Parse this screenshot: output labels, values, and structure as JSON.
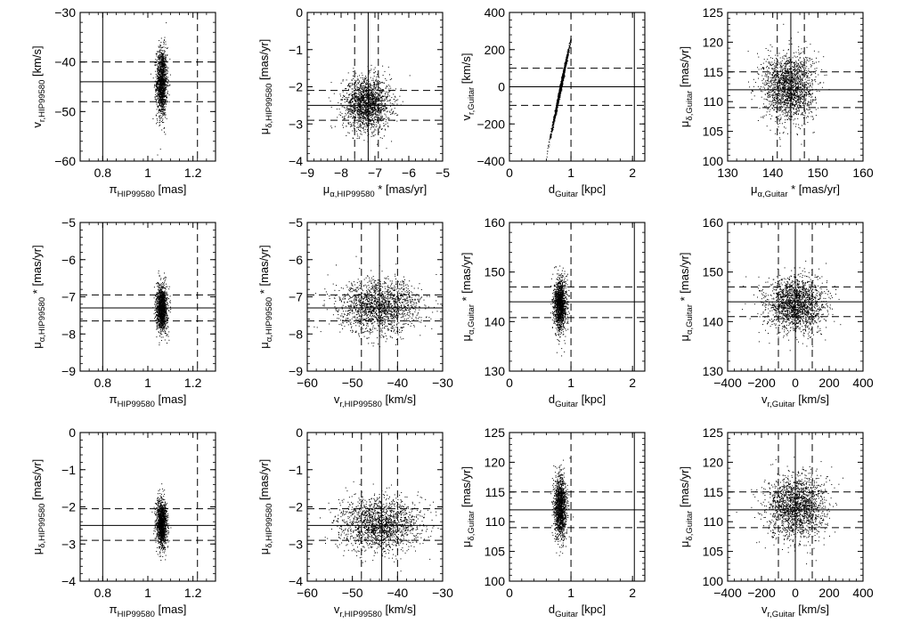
{
  "chart_data": [
    {
      "type": "scatter",
      "xlabel": {
        "main": "π",
        "sub": "HIP99580",
        "unit": "[mas]"
      },
      "ylabel": {
        "main": "v",
        "sub": "r,HIP99580",
        "unit": "[km/s]"
      },
      "xlim": [
        0.7,
        1.3
      ],
      "ylim": [
        -60,
        -30
      ],
      "xticks": [
        0.8,
        1,
        1.2
      ],
      "yticks": [
        -60,
        -50,
        -40,
        -30
      ],
      "xtick_labels": [
        "0.8",
        "1",
        "1.2"
      ],
      "ytick_labels": [
        "−60",
        "−50",
        "−40",
        "−30"
      ],
      "cloud": {
        "cx": 1.06,
        "sx": 0.012,
        "cy": -44,
        "sy": 3.5,
        "n": 1300
      },
      "solid_x": [
        0.8
      ],
      "dashed_x": [
        1.22
      ],
      "solid_y": [
        -44
      ],
      "dashed_y": [
        -40,
        -48
      ]
    },
    {
      "type": "scatter",
      "xlabel": {
        "main": "μ",
        "sub": "α,HIP99580",
        "unit": "* [mas/yr]"
      },
      "ylabel": {
        "main": "μ",
        "sub": "δ,HIP99580",
        "unit": "[mas/yr]"
      },
      "xlim": [
        -9,
        -5
      ],
      "ylim": [
        -4,
        0
      ],
      "xticks": [
        -9,
        -8,
        -7,
        -6,
        -5
      ],
      "yticks": [
        -4,
        -3,
        -2,
        -1,
        0
      ],
      "xtick_labels": [
        "−9",
        "−8",
        "−7",
        "−6",
        "−5"
      ],
      "ytick_labels": [
        "−4",
        "−3",
        "−2",
        "−1",
        "0"
      ],
      "cloud": {
        "cx": -7.25,
        "sx": 0.35,
        "cy": -2.45,
        "sy": 0.35,
        "n": 1700
      },
      "solid_x": [
        -7.2
      ],
      "dashed_x": [
        -7.6,
        -6.9
      ],
      "solid_y": [
        -2.5
      ],
      "dashed_y": [
        -2.1,
        -2.9
      ]
    },
    {
      "type": "scatter",
      "xlabel": {
        "main": "d",
        "sub": "Guitar",
        "unit": "[kpc]"
      },
      "ylabel": {
        "main": "v",
        "sub": "r,Guitar",
        "unit": "[km/s]"
      },
      "xlim": [
        0,
        2.2
      ],
      "ylim": [
        -400,
        400
      ],
      "xticks": [
        0,
        1,
        2
      ],
      "yticks": [
        -400,
        -200,
        0,
        200,
        400
      ],
      "xtick_labels": [
        "0",
        "1",
        "2"
      ],
      "ytick_labels": [
        "−400",
        "−200",
        "0",
        "200",
        "400"
      ],
      "cloud": {
        "mode": "curve",
        "cx": 0.83,
        "sx": 0.07,
        "slope": 1580,
        "n": 1400
      },
      "solid_x": [
        2.03
      ],
      "dashed_x": [
        1.0
      ],
      "solid_y": [
        0
      ],
      "dashed_y": [
        100,
        -100
      ]
    },
    {
      "type": "scatter",
      "xlabel": {
        "main": "μ",
        "sub": "α,Guitar",
        "unit": "* [mas/yr]"
      },
      "ylabel": {
        "main": "μ",
        "sub": "δ,Guitar",
        "unit": "[mas/yr]"
      },
      "xlim": [
        130,
        160
      ],
      "ylim": [
        100,
        125
      ],
      "xticks": [
        130,
        140,
        150,
        160
      ],
      "yticks": [
        100,
        105,
        110,
        115,
        120,
        125
      ],
      "xtick_labels": [
        "130",
        "140",
        "150",
        "160"
      ],
      "ytick_labels": [
        "100",
        "105",
        "110",
        "115",
        "120",
        "125"
      ],
      "cloud": {
        "cx": 143.5,
        "sx": 2.8,
        "cy": 112.5,
        "sy": 2.8,
        "n": 1800
      },
      "solid_x": [
        144
      ],
      "dashed_x": [
        141,
        147
      ],
      "solid_y": [
        112
      ],
      "dashed_y": [
        115,
        109
      ]
    },
    {
      "type": "scatter",
      "xlabel": {
        "main": "π",
        "sub": "HIP99580",
        "unit": "[mas]"
      },
      "ylabel": {
        "main": "μ",
        "sub": "α,HIP99580",
        "unit": "* [mas/yr]"
      },
      "xlim": [
        0.7,
        1.3
      ],
      "ylim": [
        -9,
        -5
      ],
      "xticks": [
        0.8,
        1,
        1.2
      ],
      "yticks": [
        -9,
        -8,
        -7,
        -6,
        -5
      ],
      "xtick_labels": [
        "0.8",
        "1",
        "1.2"
      ],
      "ytick_labels": [
        "−9",
        "−8",
        "−7",
        "−6",
        "−5"
      ],
      "cloud": {
        "cx": 1.06,
        "sx": 0.012,
        "cy": -7.3,
        "sy": 0.3,
        "n": 1300
      },
      "solid_x": [
        0.8
      ],
      "dashed_x": [
        1.22
      ],
      "solid_y": [
        -7.3
      ],
      "dashed_y": [
        -6.95,
        -7.65
      ]
    },
    {
      "type": "scatter",
      "xlabel": {
        "main": "v",
        "sub": "r,HIP99580",
        "unit": "[km/s]"
      },
      "ylabel": {
        "main": "μ",
        "sub": "α,HIP99580",
        "unit": "* [mas/yr]"
      },
      "xlim": [
        -60,
        -30
      ],
      "ylim": [
        -9,
        -5
      ],
      "xticks": [
        -60,
        -50,
        -40,
        -30
      ],
      "yticks": [
        -9,
        -8,
        -7,
        -6,
        -5
      ],
      "xtick_labels": [
        "−60",
        "−50",
        "−40",
        "−30"
      ],
      "ytick_labels": [
        "−9",
        "−8",
        "−7",
        "−6",
        "−5"
      ],
      "cloud": {
        "cx": -44,
        "sx": 4.5,
        "cy": -7.25,
        "sy": 0.35,
        "n": 1700
      },
      "solid_x": [
        -44
      ],
      "dashed_x": [
        -48,
        -40
      ],
      "solid_y": [
        -7.3
      ],
      "dashed_y": [
        -6.95,
        -7.65
      ]
    },
    {
      "type": "scatter",
      "xlabel": {
        "main": "d",
        "sub": "Guitar",
        "unit": "[kpc]"
      },
      "ylabel": {
        "main": "μ",
        "sub": "α,Guitar",
        "unit": "* [mas/yr]"
      },
      "xlim": [
        0,
        2.2
      ],
      "ylim": [
        130,
        160
      ],
      "xticks": [
        0,
        1,
        2
      ],
      "yticks": [
        130,
        140,
        150,
        160
      ],
      "xtick_labels": [
        "0",
        "1",
        "2"
      ],
      "ytick_labels": [
        "130",
        "140",
        "150",
        "160"
      ],
      "cloud": {
        "cx": 0.82,
        "sx": 0.05,
        "cy": 143.5,
        "sy": 2.6,
        "n": 1400
      },
      "solid_x": [
        2.03
      ],
      "dashed_x": [
        1.0
      ],
      "solid_y": [
        144
      ],
      "dashed_y": [
        147,
        140.8
      ]
    },
    {
      "type": "scatter",
      "xlabel": {
        "main": "v",
        "sub": "r,Guitar",
        "unit": "[km/s]"
      },
      "ylabel": {
        "main": "μ",
        "sub": "α,Guitar",
        "unit": "* [mas/yr]"
      },
      "xlim": [
        -400,
        400
      ],
      "ylim": [
        130,
        160
      ],
      "xticks": [
        -400,
        -200,
        0,
        200,
        400
      ],
      "yticks": [
        130,
        140,
        150,
        160
      ],
      "xtick_labels": [
        "−400",
        "−200",
        "0",
        "200",
        "400"
      ],
      "ytick_labels": [
        "130",
        "140",
        "150",
        "160"
      ],
      "cloud": {
        "cx": 0,
        "sx": 85,
        "cy": 143.5,
        "sy": 2.7,
        "n": 1800
      },
      "solid_x": [
        0
      ],
      "dashed_x": [
        -100,
        100
      ],
      "solid_y": [
        144
      ],
      "dashed_y": [
        147,
        141
      ]
    },
    {
      "type": "scatter",
      "xlabel": {
        "main": "π",
        "sub": "HIP99580",
        "unit": "[mas]"
      },
      "ylabel": {
        "main": "μ",
        "sub": "δ,HIP99580",
        "unit": "[mas/yr]"
      },
      "xlim": [
        0.7,
        1.3
      ],
      "ylim": [
        -4,
        0
      ],
      "xticks": [
        0.8,
        1,
        1.2
      ],
      "yticks": [
        -4,
        -3,
        -2,
        -1,
        0
      ],
      "xtick_labels": [
        "0.8",
        "1",
        "1.2"
      ],
      "ytick_labels": [
        "−4",
        "−3",
        "−2",
        "−1",
        "0"
      ],
      "cloud": {
        "cx": 1.06,
        "sx": 0.012,
        "cy": -2.45,
        "sy": 0.32,
        "n": 1300
      },
      "solid_x": [
        0.8
      ],
      "dashed_x": [
        1.22
      ],
      "solid_y": [
        -2.5
      ],
      "dashed_y": [
        -2.05,
        -2.9
      ]
    },
    {
      "type": "scatter",
      "xlabel": {
        "main": "v",
        "sub": "r,HIP99580",
        "unit": "[km/s]"
      },
      "ylabel": {
        "main": "μ",
        "sub": "δ,HIP99580",
        "unit": "[mas/yr]"
      },
      "xlim": [
        -60,
        -30
      ],
      "ylim": [
        -4,
        0
      ],
      "xticks": [
        -60,
        -50,
        -40,
        -30
      ],
      "yticks": [
        -4,
        -3,
        -2,
        -1,
        0
      ],
      "xtick_labels": [
        "−60",
        "−50",
        "−40",
        "−30"
      ],
      "ytick_labels": [
        "−4",
        "−3",
        "−2",
        "−1",
        "0"
      ],
      "cloud": {
        "cx": -44,
        "sx": 4.5,
        "cy": -2.45,
        "sy": 0.35,
        "n": 1700
      },
      "solid_x": [
        -43.5
      ],
      "dashed_x": [
        -48,
        -40
      ],
      "solid_y": [
        -2.5
      ],
      "dashed_y": [
        -2.05,
        -2.9
      ]
    },
    {
      "type": "scatter",
      "xlabel": {
        "main": "d",
        "sub": "Guitar",
        "unit": "[kpc]"
      },
      "ylabel": {
        "main": "μ",
        "sub": "δ,Guitar",
        "unit": "[mas/yr]"
      },
      "xlim": [
        0,
        2.2
      ],
      "ylim": [
        100,
        125
      ],
      "xticks": [
        0,
        1,
        2
      ],
      "yticks": [
        100,
        105,
        110,
        115,
        120,
        125
      ],
      "xtick_labels": [
        "0",
        "1",
        "2"
      ],
      "ytick_labels": [
        "100",
        "105",
        "110",
        "115",
        "120",
        "125"
      ],
      "cloud": {
        "cx": 0.82,
        "sx": 0.05,
        "cy": 112.5,
        "sy": 2.6,
        "n": 1400
      },
      "solid_x": [
        2.03
      ],
      "dashed_x": [
        1.0
      ],
      "solid_y": [
        112
      ],
      "dashed_y": [
        115,
        109
      ]
    },
    {
      "type": "scatter",
      "xlabel": {
        "main": "v",
        "sub": "r,Guitar",
        "unit": "[km/s]"
      },
      "ylabel": {
        "main": "μ",
        "sub": "δ,Guitar",
        "unit": "[mas/yr]"
      },
      "xlim": [
        -400,
        400
      ],
      "ylim": [
        100,
        125
      ],
      "xticks": [
        -400,
        -200,
        0,
        200,
        400
      ],
      "yticks": [
        100,
        105,
        110,
        115,
        120,
        125
      ],
      "xtick_labels": [
        "−400",
        "−200",
        "0",
        "200",
        "400"
      ],
      "ytick_labels": [
        "100",
        "105",
        "110",
        "115",
        "120",
        "125"
      ],
      "cloud": {
        "cx": 0,
        "sx": 85,
        "cy": 112.5,
        "sy": 2.7,
        "n": 1800
      },
      "solid_x": [
        0
      ],
      "dashed_x": [
        -100,
        100
      ],
      "solid_y": [
        112
      ],
      "dashed_y": [
        115,
        109
      ]
    }
  ]
}
